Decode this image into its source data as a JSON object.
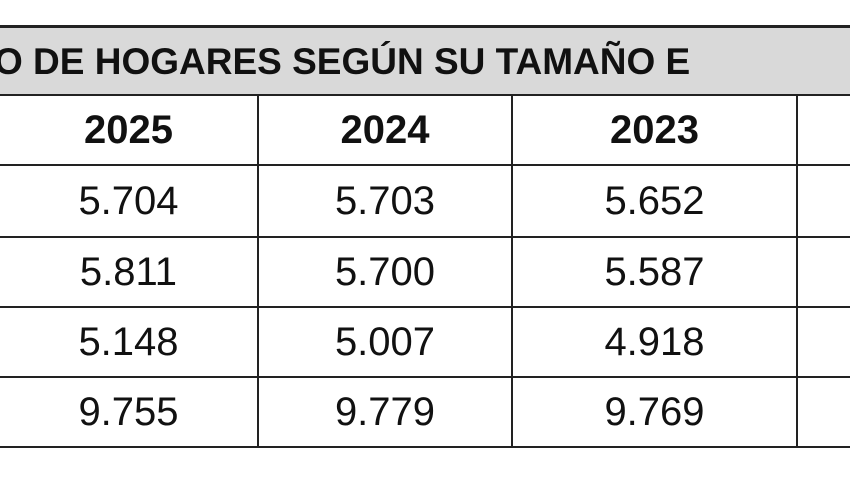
{
  "title": "O DE HOGARES SEGÚN SU TAMAÑO E",
  "table": {
    "header": [
      "2025",
      "2024",
      "2023"
    ],
    "rows": [
      [
        "5.704",
        "5.703",
        "5.652"
      ],
      [
        "5.811",
        "5.700",
        "5.587"
      ],
      [
        "5.148",
        "5.007",
        "4.918"
      ],
      [
        "9.755",
        "9.779",
        "9.769"
      ]
    ]
  }
}
